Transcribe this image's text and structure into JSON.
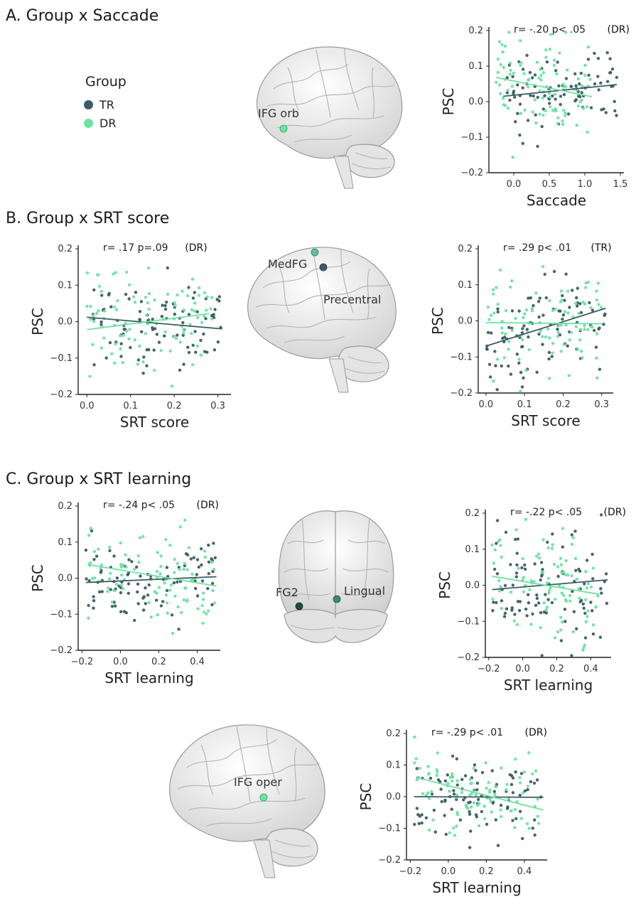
{
  "colors": {
    "TR": "#3d5c66",
    "DR": "#6ee3a0"
  },
  "legend": {
    "title": "Group",
    "items": [
      {
        "label": "TR",
        "color": "#3d5c66"
      },
      {
        "label": "DR",
        "color": "#6ee3a0"
      }
    ]
  },
  "sections": [
    {
      "title": "A. Group x Saccade"
    },
    {
      "title": "B. Group x SRT score"
    },
    {
      "title": "C. Group x SRT learning"
    }
  ],
  "brain_labels": [
    {
      "text": "IFG orb",
      "dot_color": "#6ee3a0"
    },
    {
      "text": "MedFG",
      "dot_color": "#5fbf9c"
    },
    {
      "text": "Precentral",
      "dot_color": "#3d5c66"
    },
    {
      "text": "FG2",
      "dot_color": "#1f4a3f"
    },
    {
      "text": "Lingual",
      "dot_color": "#3b8a68"
    },
    {
      "text": "IFG oper",
      "dot_color": "#6ee3a0"
    }
  ],
  "chart_data": [
    {
      "id": "A",
      "type": "scatter",
      "xlabel": "Saccade",
      "ylabel": "PSC",
      "xlim": [
        -0.35,
        1.55
      ],
      "ylim": [
        -0.2,
        0.2
      ],
      "xticks": [
        0.0,
        0.5,
        1.0,
        1.5
      ],
      "xtick_labels": [
        "0.0",
        "0.5",
        "1.0",
        "1.5"
      ],
      "yticks": [
        0.2,
        0.1,
        0.0,
        -0.1,
        -0.2
      ],
      "ytick_labels": [
        "0.2",
        "0.1",
        "0.0",
        "−0.1",
        "−0.2"
      ],
      "annotation": {
        "stat": "r= -.20  p< .05",
        "group": "(DR)"
      },
      "series": [
        {
          "name": "TR",
          "fit": [
            [
              -0.15,
              0.015
            ],
            [
              1.45,
              0.048
            ]
          ],
          "xrange": [
            -0.1,
            1.45
          ],
          "mean": 0.035,
          "sd": 0.055,
          "n": 95
        },
        {
          "name": "DR",
          "fit": [
            [
              -0.25,
              0.068
            ],
            [
              1.1,
              0.014
            ]
          ],
          "xrange": [
            -0.25,
            1.1
          ],
          "mean": 0.04,
          "sd": 0.065,
          "n": 95
        }
      ]
    },
    {
      "id": "B1",
      "type": "scatter",
      "xlabel": "SRT score",
      "ylabel": "PSC",
      "xlim": [
        -0.02,
        0.33
      ],
      "ylim": [
        -0.2,
        0.2
      ],
      "xticks": [
        0.0,
        0.1,
        0.2,
        0.3
      ],
      "xtick_labels": [
        "0.0",
        "0.1",
        "0.2",
        "0.3"
      ],
      "yticks": [
        0.2,
        0.1,
        0.0,
        -0.1,
        -0.2
      ],
      "ytick_labels": [
        "0.2",
        "0.1",
        "0.0",
        "−0.1",
        "−0.2"
      ],
      "annotation": {
        "stat": "r= .17  p=.09",
        "group": "(DR)"
      },
      "series": [
        {
          "name": "TR",
          "fit": [
            [
              0.0,
              0.012
            ],
            [
              0.31,
              -0.02
            ]
          ],
          "xrange": [
            0.0,
            0.31
          ],
          "mean": 0.0,
          "sd": 0.065,
          "n": 95
        },
        {
          "name": "DR",
          "fit": [
            [
              0.0,
              -0.022
            ],
            [
              0.28,
              0.022
            ]
          ],
          "xrange": [
            0.0,
            0.29
          ],
          "mean": 0.0,
          "sd": 0.07,
          "n": 95
        }
      ]
    },
    {
      "id": "B2",
      "type": "scatter",
      "xlabel": "SRT score",
      "ylabel": "PSC",
      "xlim": [
        -0.02,
        0.33
      ],
      "ylim": [
        -0.2,
        0.2
      ],
      "xticks": [
        0.0,
        0.1,
        0.2,
        0.3
      ],
      "xtick_labels": [
        "0.0",
        "0.1",
        "0.2",
        "0.3"
      ],
      "yticks": [
        0.2,
        0.1,
        0.0,
        -0.1,
        -0.2
      ],
      "ytick_labels": [
        "0.2",
        "0.1",
        "0.0",
        "−0.1",
        "−0.2"
      ],
      "annotation": {
        "stat": "r= .29  p< .01",
        "group": "(TR)"
      },
      "series": [
        {
          "name": "TR",
          "fit": [
            [
              0.0,
              -0.07
            ],
            [
              0.31,
              0.035
            ]
          ],
          "xrange": [
            0.0,
            0.31
          ],
          "mean": -0.02,
          "sd": 0.07,
          "n": 95
        },
        {
          "name": "DR",
          "fit": [
            [
              0.0,
              -0.005
            ],
            [
              0.3,
              -0.008
            ]
          ],
          "xrange": [
            0.0,
            0.3
          ],
          "mean": 0.01,
          "sd": 0.08,
          "n": 95
        }
      ]
    },
    {
      "id": "C1",
      "type": "scatter",
      "xlabel": "SRT learning",
      "ylabel": "PSC",
      "xlim": [
        -0.22,
        0.52
      ],
      "ylim": [
        -0.2,
        0.2
      ],
      "xticks": [
        -0.2,
        0.0,
        0.2,
        0.4
      ],
      "xtick_labels": [
        "−0.2",
        "0.0",
        "0.2",
        "0.4"
      ],
      "yticks": [
        0.2,
        0.1,
        0.0,
        -0.1,
        -0.2
      ],
      "ytick_labels": [
        "0.2",
        "0.1",
        "0.0",
        "−0.1",
        "−0.2"
      ],
      "annotation": {
        "stat": "r= -.24  p< .05",
        "group": "(DR)"
      },
      "series": [
        {
          "name": "TR",
          "fit": [
            [
              -0.18,
              -0.012
            ],
            [
              0.5,
              0.004
            ]
          ],
          "xrange": [
            -0.18,
            0.5
          ],
          "mean": 0.0,
          "sd": 0.055,
          "n": 95
        },
        {
          "name": "DR",
          "fit": [
            [
              -0.15,
              0.036
            ],
            [
              0.5,
              -0.022
            ]
          ],
          "xrange": [
            -0.18,
            0.5
          ],
          "mean": 0.0,
          "sd": 0.06,
          "n": 95
        }
      ]
    },
    {
      "id": "C2",
      "type": "scatter",
      "xlabel": "SRT learning",
      "ylabel": "PSC",
      "xlim": [
        -0.22,
        0.52
      ],
      "ylim": [
        -0.2,
        0.2
      ],
      "xticks": [
        -0.2,
        0.0,
        0.2,
        0.4
      ],
      "xtick_labels": [
        "−0.2",
        "0.0",
        "0.2",
        "0.4"
      ],
      "yticks": [
        0.2,
        0.1,
        0.0,
        -0.1,
        -0.2
      ],
      "ytick_labels": [
        "0.2",
        "0.1",
        "0.0",
        "−0.1",
        "−0.2"
      ],
      "annotation": {
        "stat": "r= -.22  p< .05",
        "group": "(DR)"
      },
      "series": [
        {
          "name": "TR",
          "fit": [
            [
              -0.18,
              -0.012
            ],
            [
              0.5,
              0.015
            ]
          ],
          "xrange": [
            -0.18,
            0.5
          ],
          "mean": 0.0,
          "sd": 0.07,
          "n": 95
        },
        {
          "name": "DR",
          "fit": [
            [
              -0.18,
              0.025
            ],
            [
              0.45,
              -0.025
            ]
          ],
          "xrange": [
            -0.18,
            0.45
          ],
          "mean": 0.0,
          "sd": 0.075,
          "n": 95
        }
      ]
    },
    {
      "id": "C3",
      "type": "scatter",
      "xlabel": "SRT learning",
      "ylabel": "PSC",
      "xlim": [
        -0.22,
        0.52
      ],
      "ylim": [
        -0.2,
        0.2
      ],
      "xticks": [
        -0.2,
        0.0,
        0.2,
        0.4
      ],
      "xtick_labels": [
        "−0.2",
        "0.0",
        "0.2",
        "0.4"
      ],
      "yticks": [
        0.2,
        0.1,
        0.0,
        -0.1,
        -0.2
      ],
      "ytick_labels": [
        "0.2",
        "0.1",
        "0.0",
        "−0.1",
        "−0.2"
      ],
      "annotation": {
        "stat": "r= -.29  p< .01",
        "group": "(DR)"
      },
      "series": [
        {
          "name": "TR",
          "fit": [
            [
              -0.18,
              0.0
            ],
            [
              0.5,
              -0.002
            ]
          ],
          "xrange": [
            -0.18,
            0.5
          ],
          "mean": 0.0,
          "sd": 0.055,
          "n": 95
        },
        {
          "name": "DR",
          "fit": [
            [
              -0.15,
              0.058
            ],
            [
              0.5,
              -0.042
            ]
          ],
          "xrange": [
            -0.18,
            0.48
          ],
          "mean": 0.0,
          "sd": 0.06,
          "n": 95
        }
      ]
    }
  ]
}
